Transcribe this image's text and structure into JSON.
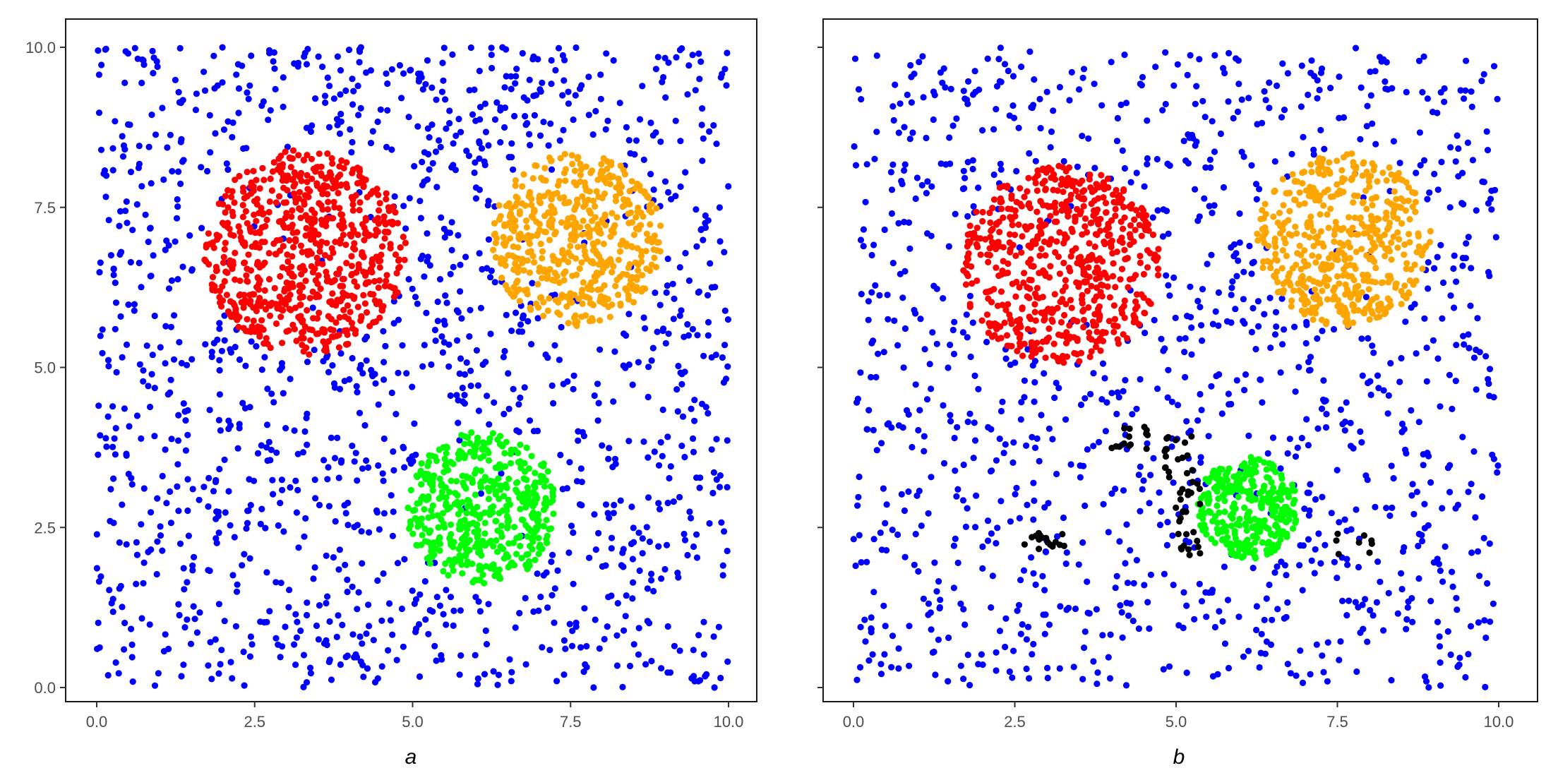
{
  "chart_data": [
    {
      "type": "scatter",
      "title": "",
      "xlabel": "a",
      "ylabel": "",
      "xlim": [
        0,
        10
      ],
      "ylim": [
        0,
        10
      ],
      "x_ticks": [
        "0.0",
        "2.5",
        "5.0",
        "7.5",
        "10.0"
      ],
      "y_ticks": [
        "0.0",
        "2.5",
        "5.0",
        "7.5",
        "10.0"
      ],
      "grid": false,
      "legend": "none",
      "background_points": {
        "color": "#0000ff",
        "count": 1350,
        "distribution": "uniform over [0,10]x[0,10]",
        "sample": [
          [
            0.3,
            9.5
          ],
          [
            1.0,
            9.9
          ],
          [
            4.9,
            9.9
          ],
          [
            0.5,
            7.0
          ],
          [
            9.6,
            5.6
          ],
          [
            0.1,
            4.1
          ],
          [
            1.2,
            3.1
          ],
          [
            4.4,
            0.2
          ],
          [
            9.9,
            9.8
          ],
          [
            0.9,
            0.5
          ]
        ]
      },
      "clusters": [
        {
          "color": "#ff0000",
          "center": [
            3.3,
            6.8
          ],
          "radius": 1.6,
          "count": 700
        },
        {
          "color": "#ffa500",
          "center": [
            7.6,
            7.0
          ],
          "radius": 1.35,
          "count": 520
        },
        {
          "color": "#00ff00",
          "center": [
            6.1,
            2.8
          ],
          "radius": 1.2,
          "count": 480
        }
      ]
    },
    {
      "type": "scatter",
      "title": "",
      "xlabel": "b",
      "ylabel": "",
      "xlim": [
        0,
        10
      ],
      "ylim": [
        0,
        10
      ],
      "x_ticks": [
        "0.0",
        "2.5",
        "5.0",
        "7.5",
        "10.0"
      ],
      "y_ticks": [],
      "grid": false,
      "legend": "none",
      "background_points": {
        "color": "#0000ff",
        "count": 1150,
        "distribution": "uniform over [0,10]x[0,10]",
        "sample": [
          [
            1.0,
            9.9
          ],
          [
            9.9,
            9.8
          ],
          [
            0.1,
            4.1
          ],
          [
            4.4,
            0.3
          ],
          [
            0.9,
            0.5
          ],
          [
            8.3,
            9.9
          ],
          [
            9.7,
            4.8
          ],
          [
            0.3,
            8.0
          ]
        ]
      },
      "clusters": [
        {
          "color": "#ff0000",
          "center": [
            3.2,
            6.6
          ],
          "radius": 1.55,
          "count": 620
        },
        {
          "color": "#ffa500",
          "center": [
            7.6,
            7.0
          ],
          "radius": 1.35,
          "count": 500
        },
        {
          "color": "#00ff00",
          "center": [
            6.1,
            2.8
          ],
          "radius": 0.8,
          "count": 330
        }
      ],
      "noise_clusters": {
        "color": "#000000",
        "groups": [
          {
            "center": [
              4.3,
              3.9
            ],
            "points": 14
          },
          {
            "center": [
              5.1,
              3.0
            ],
            "points": 45
          },
          {
            "center": [
              3.0,
              2.25
            ],
            "points": 16
          },
          {
            "center": [
              7.7,
              2.25
            ],
            "points": 8
          }
        ]
      }
    }
  ]
}
